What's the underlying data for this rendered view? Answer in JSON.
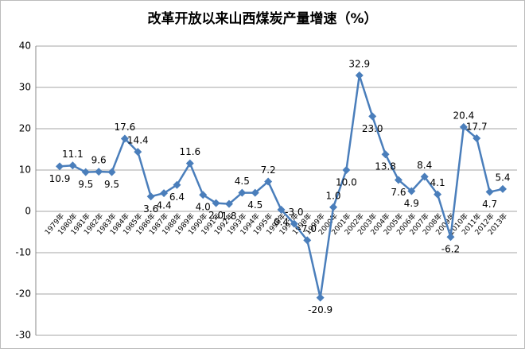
{
  "chart_data": {
    "type": "line",
    "title": "改革开放以来山西煤炭产量增速（%）",
    "categories": [
      "1979年",
      "1980年",
      "1981年",
      "1982年",
      "1983年",
      "1984年",
      "1985年",
      "1986年",
      "1987年",
      "1988年",
      "1989年",
      "1990年",
      "1991年",
      "1992年",
      "1993年",
      "1994年",
      "1995年",
      "1996年",
      "1997年",
      "1998年",
      "1999年",
      "2000年",
      "2001年",
      "2002年",
      "2003年",
      "2004年",
      "2005年",
      "2006年",
      "2007年",
      "2008年",
      "2009年",
      "2010年",
      "2011年",
      "2012年",
      "2013年"
    ],
    "series": [
      {
        "name": "增速",
        "color": "#4a7ebb",
        "values": [
          10.9,
          11.1,
          9.5,
          9.6,
          9.5,
          17.6,
          14.4,
          3.6,
          4.4,
          6.4,
          11.6,
          4.0,
          2.0,
          1.8,
          4.5,
          4.5,
          7.2,
          0.4,
          -3.0,
          -7.0,
          -20.9,
          1.0,
          10.0,
          32.9,
          23.0,
          13.8,
          7.6,
          4.9,
          8.4,
          4.1,
          -6.2,
          20.4,
          17.7,
          4.7,
          5.4
        ],
        "value_labels": [
          "10.9",
          "11.1",
          "9.5",
          "9.6",
          "9.5",
          "17.6",
          "14.4",
          "3.6",
          "4.4",
          "6.4",
          "11.6",
          "4.0",
          "2.0",
          "1.8",
          "4.5",
          "4.5",
          "7.2",
          "0.4",
          "-3.0",
          "-7.0",
          "-20.9",
          "1.0",
          "10.0",
          "32.9",
          "23.0",
          "13.8",
          "7.6",
          "4.9",
          "8.4",
          "4.1",
          "-6.2",
          "20.4",
          "17.7",
          "4.7",
          "5.4"
        ]
      }
    ],
    "ylim": [
      -30,
      40
    ],
    "yticks": [
      -30,
      -20,
      -10,
      0,
      10,
      20,
      30,
      40
    ],
    "grid": true
  }
}
